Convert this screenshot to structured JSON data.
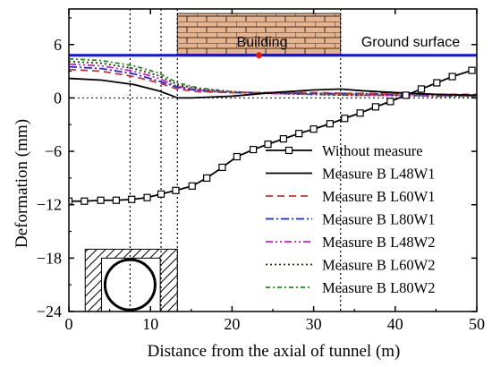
{
  "chart_data": {
    "type": "line",
    "xlabel": "Distance from the axial of tunnel (m)",
    "ylabel": "Deformation (mm)",
    "xlim": [
      0,
      50
    ],
    "ylim": [
      -24,
      10
    ],
    "xticks": [
      "0",
      "10",
      "20",
      "30",
      "40",
      "50"
    ],
    "yticks": [
      "6",
      "0",
      "−6",
      "−12",
      "−18",
      "−24"
    ],
    "grid": false,
    "legend_position": "lower-right",
    "annotations": {
      "building": "Building",
      "ground_surface": "Ground surface"
    },
    "ground_surface_y": 4.8,
    "building_x_range": [
      13.3,
      33.3
    ],
    "building_center": [
      23.3,
      4.8
    ],
    "reference_lines_x": [
      7.5,
      11.3,
      13.3,
      33.3
    ],
    "colors": {
      "ground": "#1414e6",
      "brick": "#e8b48e",
      "marker": "#e01818"
    },
    "series": [
      {
        "name": "Without measure",
        "color": "#000000",
        "style": "solid-square",
        "x": [
          0,
          1.9,
          3.9,
          5.8,
          7.7,
          9.6,
          11.3,
          13.1,
          15.1,
          16.9,
          18.8,
          20.6,
          22.6,
          24.4,
          26.3,
          28.2,
          30.0,
          32.0,
          33.8,
          35.7,
          37.6,
          39.4,
          41.3,
          43.2,
          45.1,
          47.0,
          49.4
        ],
        "y": [
          -11.6,
          -11.6,
          -11.5,
          -11.5,
          -11.4,
          -11.2,
          -10.8,
          -10.4,
          -9.9,
          -9.0,
          -7.8,
          -6.6,
          -5.8,
          -5.2,
          -4.6,
          -4.0,
          -3.5,
          -2.9,
          -2.3,
          -1.7,
          -1.0,
          -0.4,
          0.3,
          1.0,
          1.7,
          2.4,
          3.1
        ]
      },
      {
        "name": "Measure B L48W1",
        "color": "#000000",
        "style": "solid",
        "x": [
          0,
          4,
          8,
          11,
          12.5,
          13.3,
          15,
          20,
          25,
          30,
          33.3,
          36,
          40,
          45,
          50
        ],
        "y": [
          2.2,
          2.0,
          1.5,
          0.8,
          0.3,
          0.0,
          0.0,
          0.2,
          0.6,
          0.9,
          1.0,
          0.8,
          0.6,
          0.4,
          0.3
        ]
      },
      {
        "name": "Measure B L60W1",
        "color": "#c8342a",
        "style": "dash",
        "x": [
          0,
          4,
          8,
          11,
          13.3,
          16,
          20,
          25,
          30,
          35,
          40,
          45,
          50
        ],
        "y": [
          3.2,
          3.0,
          2.4,
          1.7,
          1.0,
          0.7,
          0.6,
          0.6,
          0.6,
          0.5,
          0.5,
          0.4,
          0.4
        ]
      },
      {
        "name": "Measure B L80W1",
        "color": "#1a2fd0",
        "style": "dashdot",
        "x": [
          0,
          4,
          8,
          11,
          13.3,
          16,
          20,
          25,
          30,
          35,
          40,
          45,
          50
        ],
        "y": [
          3.5,
          3.3,
          2.7,
          1.9,
          1.2,
          0.8,
          0.6,
          0.6,
          0.5,
          0.5,
          0.4,
          0.4,
          0.3
        ]
      },
      {
        "name": "Measure B L48W2",
        "color": "#c81ec8",
        "style": "dashdotdot",
        "x": [
          0,
          4,
          8,
          11,
          13.3,
          16,
          20,
          25,
          30,
          35,
          40,
          45,
          50
        ],
        "y": [
          3.8,
          3.6,
          3.0,
          2.2,
          1.3,
          0.9,
          0.6,
          0.5,
          0.5,
          0.4,
          0.3,
          0.3,
          0.2
        ]
      },
      {
        "name": "Measure B L60W2",
        "color": "#3a2618",
        "style": "dot",
        "x": [
          0,
          4,
          8,
          11,
          13.3,
          16,
          20,
          25,
          30,
          35,
          40,
          45,
          50
        ],
        "y": [
          4.1,
          3.9,
          3.3,
          2.5,
          1.5,
          1.0,
          0.7,
          0.5,
          0.4,
          0.3,
          0.3,
          0.2,
          0.2
        ]
      },
      {
        "name": "Measure B L80W2",
        "color": "#1e8c1e",
        "style": "dashdot-short",
        "x": [
          0,
          4,
          8,
          11,
          13.3,
          16,
          20,
          25,
          30,
          35,
          40,
          45,
          50
        ],
        "y": [
          4.4,
          4.2,
          3.6,
          2.8,
          1.7,
          1.1,
          0.7,
          0.5,
          0.4,
          0.3,
          0.3,
          0.2,
          0.2
        ]
      }
    ]
  }
}
